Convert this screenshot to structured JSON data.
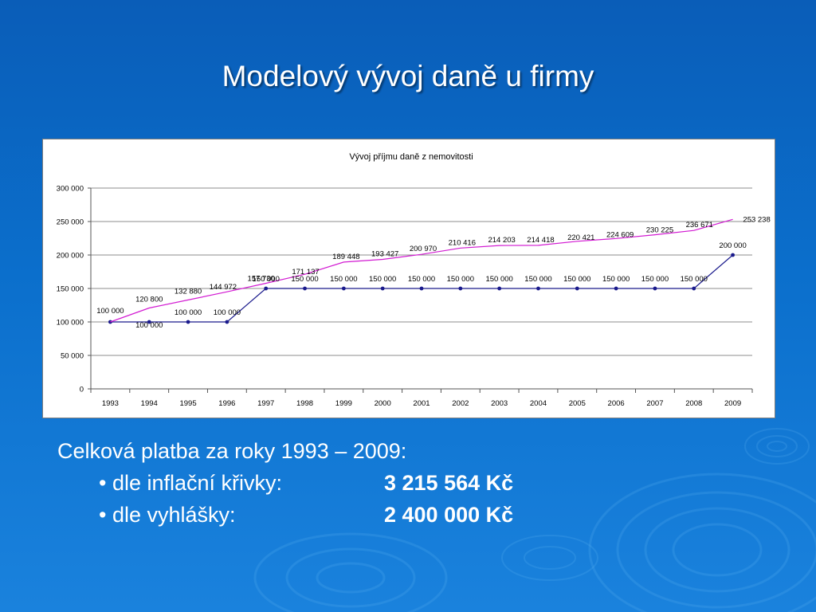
{
  "slide": {
    "title": "Modelový vývoj daně u firmy"
  },
  "summary": {
    "heading": "Celková platba za roky 1993 – 2009:",
    "items": [
      {
        "label": "• dle inflační křivky:",
        "value": "3 215 564 Kč"
      },
      {
        "label": "• dle vyhlášky:",
        "value": "2 400 000 Kč"
      }
    ]
  },
  "colors": {
    "inflation_series": "#d21ad2",
    "regulation_series": "#1a1a8c",
    "gridline": "#8c8c8c"
  },
  "chart_data": {
    "type": "line",
    "title": "Vývoj příjmu daně z nemovitosti",
    "xlabel": "",
    "ylabel": "",
    "grid": true,
    "legend": "none",
    "ylim": [
      0,
      300000
    ],
    "yticks": [
      0,
      50000,
      100000,
      150000,
      200000,
      250000,
      300000
    ],
    "ytick_labels": [
      "0",
      "50 000",
      "100 000",
      "150 000",
      "200 000",
      "250 000",
      "300 000"
    ],
    "categories": [
      "1993",
      "1994",
      "1995",
      "1996",
      "1997",
      "1998",
      "1999",
      "2000",
      "2001",
      "2002",
      "2003",
      "2004",
      "2005",
      "2006",
      "2007",
      "2008",
      "2009"
    ],
    "series": [
      {
        "name": "",
        "values": [
          100000,
          100000,
          100000,
          100000,
          150000,
          150000,
          150000,
          150000,
          150000,
          150000,
          150000,
          150000,
          150000,
          150000,
          150000,
          150000,
          200000
        ],
        "labels": [
          "100 000",
          "100 000",
          "100 000",
          "100 000",
          "150 000",
          "150 000",
          "150 000",
          "150 000",
          "150 000",
          "150 000",
          "150 000",
          "150 000",
          "150 000",
          "150 000",
          "150 000",
          "150 000",
          "200 000"
        ],
        "markers": true
      },
      {
        "name": "",
        "values": [
          100000,
          120800,
          132880,
          144972,
          157730,
          171137,
          189448,
          193427,
          200970,
          210416,
          214203,
          214418,
          220421,
          224609,
          230225,
          236671,
          253238
        ],
        "labels": [
          "",
          "120 800",
          "132 880",
          "144 972",
          "157 730",
          "171 137",
          "189 448",
          "193 427",
          "200 970",
          "210 416",
          "214 203",
          "214 418",
          "220 421",
          "224 609",
          "230 225",
          "236 671",
          "253 238"
        ],
        "markers": false
      }
    ]
  }
}
